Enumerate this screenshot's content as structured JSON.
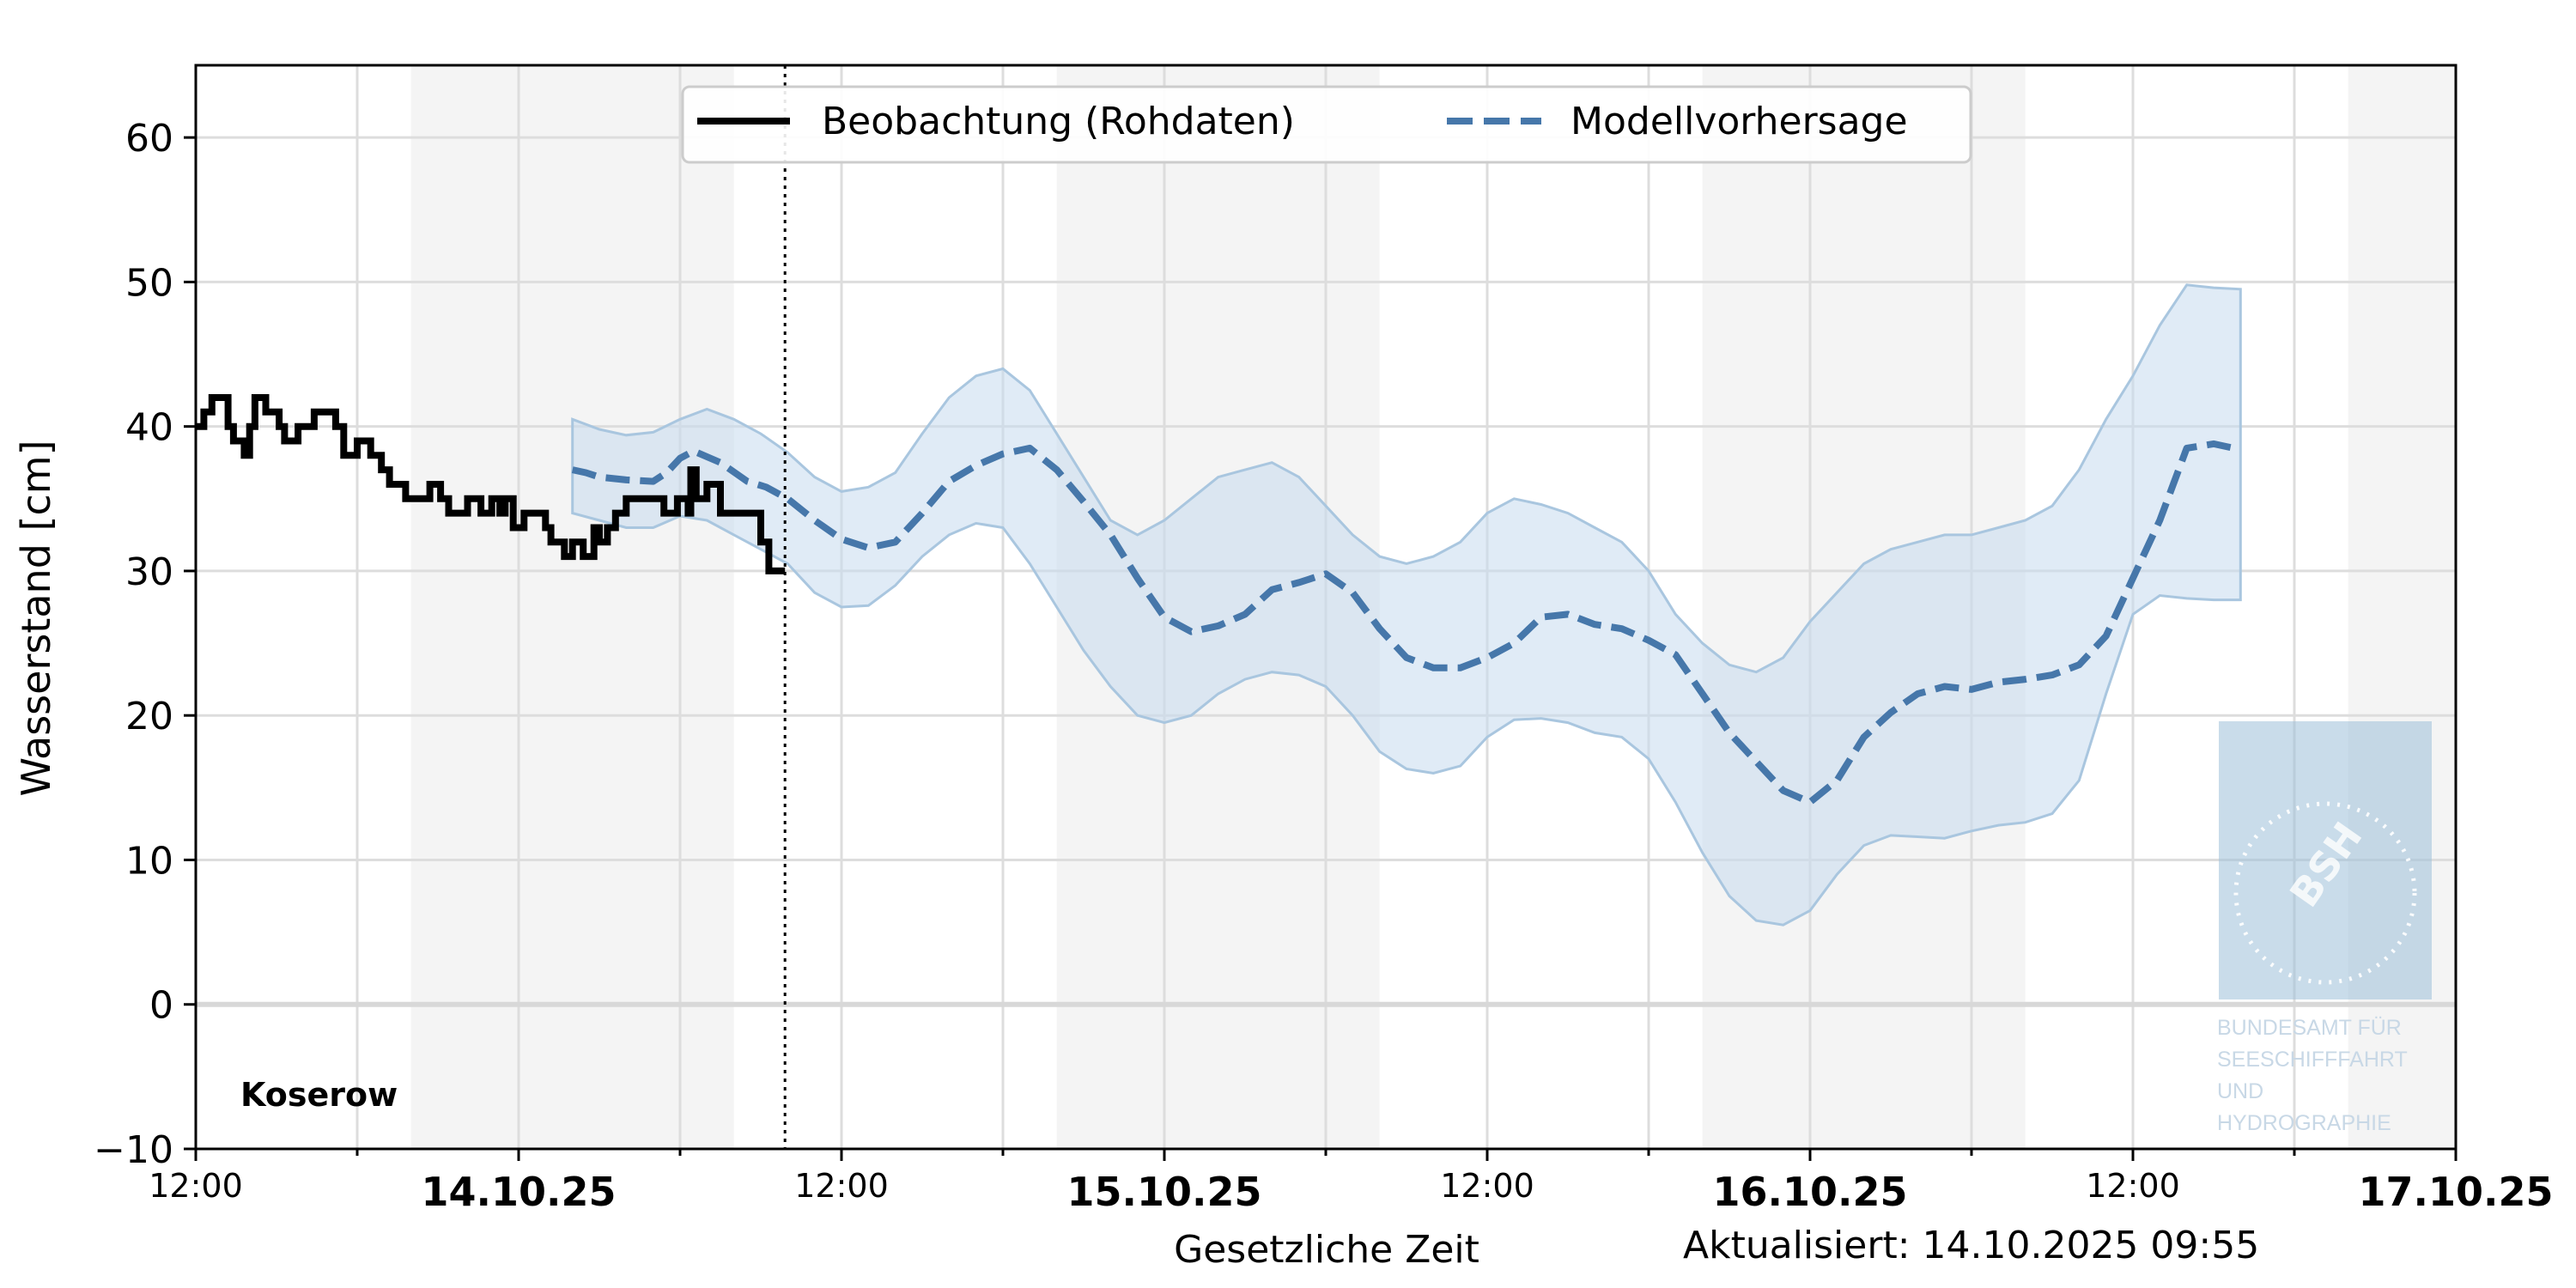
{
  "chart_data": {
    "type": "line",
    "station": "Koserow",
    "ylabel": "Wasserstand [cm]",
    "xlabel": "Gesetzliche Zeit",
    "updated": "Aktualisiert: 14.10.2025 09:55",
    "legend_position": "top-center",
    "grid": true,
    "ylim": [
      -10,
      65
    ],
    "y_ticks": [
      -10,
      0,
      10,
      20,
      30,
      40,
      50,
      60
    ],
    "x_ticks": [
      {
        "h": 0,
        "label": "12:00",
        "bold": false
      },
      {
        "h": 12,
        "label": "14.10.25",
        "bold": true
      },
      {
        "h": 24,
        "label": "12:00",
        "bold": false
      },
      {
        "h": 36,
        "label": "15.10.25",
        "bold": true
      },
      {
        "h": 48,
        "label": "12:00",
        "bold": false
      },
      {
        "h": 60,
        "label": "16.10.25",
        "bold": true
      },
      {
        "h": 72,
        "label": "12:00",
        "bold": false
      },
      {
        "h": 84,
        "label": "17.10.25",
        "bold": true
      }
    ],
    "x_unit": "hours since 13.10.25 12:00",
    "xlim": [
      0,
      84
    ],
    "night_bands": [
      [
        8,
        20
      ],
      [
        32,
        44
      ],
      [
        56,
        68
      ],
      [
        80,
        84
      ]
    ],
    "now_marker_h": 21.9,
    "colors": {
      "observation": "#000000",
      "forecast": "#4677aa",
      "band": "#c6dbee",
      "night": "#f4f4f4",
      "grid": "#dddddd"
    },
    "series": [
      {
        "name": "Beobachtung (Rohdaten)",
        "style": "solid",
        "points": [
          [
            0,
            40
          ],
          [
            0.3,
            41
          ],
          [
            0.5,
            41
          ],
          [
            0.6,
            42
          ],
          [
            1.1,
            42
          ],
          [
            1.2,
            40
          ],
          [
            1.4,
            39
          ],
          [
            1.8,
            38
          ],
          [
            2.0,
            40
          ],
          [
            2.2,
            42
          ],
          [
            2.6,
            41
          ],
          [
            3.1,
            40
          ],
          [
            3.3,
            39
          ],
          [
            3.8,
            40
          ],
          [
            4.4,
            41
          ],
          [
            5.2,
            40
          ],
          [
            5.5,
            38
          ],
          [
            6.0,
            39
          ],
          [
            6.5,
            38
          ],
          [
            6.9,
            37
          ],
          [
            7.2,
            36
          ],
          [
            7.8,
            35
          ],
          [
            8.7,
            36
          ],
          [
            9.1,
            35
          ],
          [
            9.4,
            34
          ],
          [
            10.1,
            35
          ],
          [
            10.6,
            34
          ],
          [
            11.0,
            35
          ],
          [
            11.3,
            34
          ],
          [
            11.5,
            35
          ],
          [
            11.8,
            33
          ],
          [
            12.2,
            34
          ],
          [
            13.0,
            33
          ],
          [
            13.2,
            32
          ],
          [
            13.7,
            31
          ],
          [
            14.0,
            32
          ],
          [
            14.4,
            31
          ],
          [
            14.8,
            33
          ],
          [
            15.0,
            32
          ],
          [
            15.3,
            33
          ],
          [
            15.6,
            34
          ],
          [
            16.0,
            35
          ],
          [
            17.4,
            34
          ],
          [
            17.9,
            35
          ],
          [
            18.3,
            34
          ],
          [
            18.4,
            37
          ],
          [
            18.6,
            35
          ],
          [
            19.0,
            36
          ],
          [
            19.5,
            34
          ],
          [
            20.8,
            34
          ],
          [
            21.0,
            32
          ],
          [
            21.3,
            30
          ],
          [
            21.9,
            30
          ]
        ]
      },
      {
        "name": "Modellvorhersage",
        "style": "dashed",
        "points": [
          [
            14,
            37
          ],
          [
            14.5,
            36.8
          ],
          [
            15,
            36.5
          ],
          [
            16,
            36.3
          ],
          [
            17,
            36.2
          ],
          [
            17.5,
            36.8
          ],
          [
            18,
            37.8
          ],
          [
            18.5,
            38.3
          ],
          [
            19.5,
            37.5
          ],
          [
            20.5,
            36.2
          ],
          [
            21.2,
            35.8
          ],
          [
            22,
            35
          ],
          [
            23,
            33.5
          ],
          [
            24,
            32.2
          ],
          [
            25,
            31.6
          ],
          [
            26,
            32
          ],
          [
            27,
            34
          ],
          [
            28,
            36.2
          ],
          [
            29,
            37.3
          ],
          [
            30,
            38.1
          ],
          [
            31,
            38.5
          ],
          [
            32,
            37
          ],
          [
            33,
            34.8
          ],
          [
            34,
            32.5
          ],
          [
            35,
            29.5
          ],
          [
            36,
            26.8
          ],
          [
            37,
            25.8
          ],
          [
            38,
            26.2
          ],
          [
            39,
            27
          ],
          [
            40,
            28.7
          ],
          [
            41,
            29.2
          ],
          [
            42,
            29.8
          ],
          [
            43,
            28.5
          ],
          [
            44,
            26
          ],
          [
            45,
            24
          ],
          [
            46,
            23.3
          ],
          [
            47,
            23.3
          ],
          [
            48,
            24
          ],
          [
            49,
            25
          ],
          [
            50,
            26.8
          ],
          [
            51,
            27
          ],
          [
            52,
            26.3
          ],
          [
            53,
            26
          ],
          [
            54,
            25.2
          ],
          [
            55,
            24.2
          ],
          [
            56,
            21.5
          ],
          [
            57,
            18.8
          ],
          [
            58,
            16.8
          ],
          [
            59,
            14.8
          ],
          [
            60,
            14
          ],
          [
            61,
            15.5
          ],
          [
            62,
            18.5
          ],
          [
            63,
            20.2
          ],
          [
            64,
            21.5
          ],
          [
            65,
            22
          ],
          [
            66,
            21.8
          ],
          [
            67,
            22.3
          ],
          [
            68,
            22.5
          ],
          [
            69,
            22.8
          ],
          [
            70,
            23.5
          ],
          [
            71,
            25.5
          ],
          [
            72,
            29.5
          ],
          [
            73,
            33.5
          ],
          [
            74,
            38.5
          ],
          [
            75,
            38.8
          ],
          [
            76,
            38.4
          ]
        ]
      }
    ],
    "uncertainty_band": {
      "x": [
        14,
        15,
        16,
        17,
        18,
        19,
        20,
        21,
        22,
        23,
        24,
        25,
        26,
        27,
        28,
        29,
        30,
        31,
        32,
        33,
        34,
        35,
        36,
        37,
        38,
        39,
        40,
        41,
        42,
        43,
        44,
        45,
        46,
        47,
        48,
        49,
        50,
        51,
        52,
        53,
        54,
        55,
        56,
        57,
        58,
        59,
        60,
        61,
        62,
        63,
        64,
        65,
        66,
        67,
        68,
        69,
        70,
        71,
        72,
        73,
        74,
        75,
        76
      ],
      "upper": [
        40.5,
        39.8,
        39.4,
        39.6,
        40.5,
        41.2,
        40.5,
        39.5,
        38.2,
        36.5,
        35.5,
        35.8,
        36.8,
        39.5,
        42,
        43.5,
        44,
        42.5,
        39.5,
        36.5,
        33.5,
        32.5,
        33.5,
        35,
        36.5,
        37,
        37.5,
        36.5,
        34.5,
        32.5,
        31,
        30.5,
        31,
        32,
        34,
        35,
        34.6,
        34,
        33,
        32,
        30,
        27,
        25,
        23.5,
        23,
        24,
        26.5,
        28.5,
        30.5,
        31.5,
        32,
        32.5,
        32.5,
        33,
        33.5,
        34.5,
        37,
        40.5,
        43.5,
        47,
        49.8,
        49.6,
        49.5
      ],
      "lower": [
        34,
        33.5,
        33,
        33,
        33.8,
        33.5,
        32.5,
        31.5,
        30.5,
        28.5,
        27.5,
        27.6,
        29,
        31,
        32.5,
        33.3,
        33,
        30.5,
        27.5,
        24.5,
        22,
        20,
        19.5,
        20,
        21.5,
        22.5,
        23,
        22.8,
        22,
        20,
        17.5,
        16.3,
        16,
        16.5,
        18.5,
        19.7,
        19.8,
        19.5,
        18.8,
        18.5,
        17,
        14,
        10.5,
        7.5,
        5.8,
        5.5,
        6.5,
        9,
        11,
        11.7,
        11.6,
        11.5,
        12,
        12.4,
        12.6,
        13.2,
        15.5,
        21.5,
        27,
        28.3,
        28.1,
        28,
        28
      ]
    }
  },
  "watermark": {
    "seal_text": "BSH",
    "lines": [
      "BUNDESAMT FÜR",
      "SEESCHIFFFAHRT",
      "UND",
      "HYDROGRAPHIE"
    ]
  }
}
